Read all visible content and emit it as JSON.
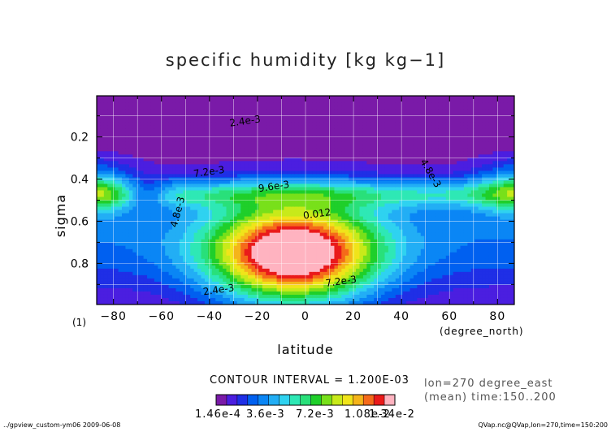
{
  "chart_data": {
    "type": "heatmap",
    "title": "specific humidity [kg kg−1]",
    "xlabel": "latitude",
    "ylabel": "sigma",
    "x_units": "(degree_north)",
    "panel_number": "(1)",
    "xlim": [
      -87,
      87
    ],
    "ylim": [
      0.995,
      0.005
    ],
    "x_ticks": [
      -80,
      -60,
      -40,
      -20,
      0,
      20,
      40,
      60,
      80
    ],
    "y_ticks": [
      0.2,
      0.4,
      0.6,
      0.8
    ],
    "contour_interval_text": "CONTOUR INTERVAL = 1.200E-03",
    "contour_labels": [
      "2.4e-3",
      "7.2e-3",
      "9.6e-3",
      "4.8e-3",
      "0.012",
      "4.8e-3",
      "7.2e-3",
      "2.4e-3"
    ],
    "colorbar": {
      "tick_labels": [
        "1.46e-4",
        "3.6e-3",
        "7.2e-3",
        "1.08e-2",
        "1.34e-2"
      ],
      "min": 0.000146,
      "max": 0.0134,
      "colors": [
        "#7a1aa8",
        "#4b1ee0",
        "#1f2fe6",
        "#0060f0",
        "#0a86f5",
        "#22aef5",
        "#2fd2f0",
        "#2ee8b5",
        "#29e07a",
        "#1fcf2a",
        "#78e01a",
        "#c8ea1a",
        "#f0e41a",
        "#f5b41a",
        "#f56a1a",
        "#ea1a1a",
        "#ffb3c0"
      ]
    },
    "field": {
      "peak_value": 0.0134,
      "peak_location": {
        "latitude": -5,
        "sigma": 0.76
      }
    }
  },
  "annotations": {
    "meta_line1": "lon=270 degree_east",
    "meta_line2": "(mean) time:150..200",
    "footer_left": "../gpview_custom-ym06  2009-06-08",
    "footer_right": "QVap.nc@QVap,lon=270,time=150:200"
  },
  "colors": {
    "frame": "#000000",
    "grid": "#ffffff"
  }
}
